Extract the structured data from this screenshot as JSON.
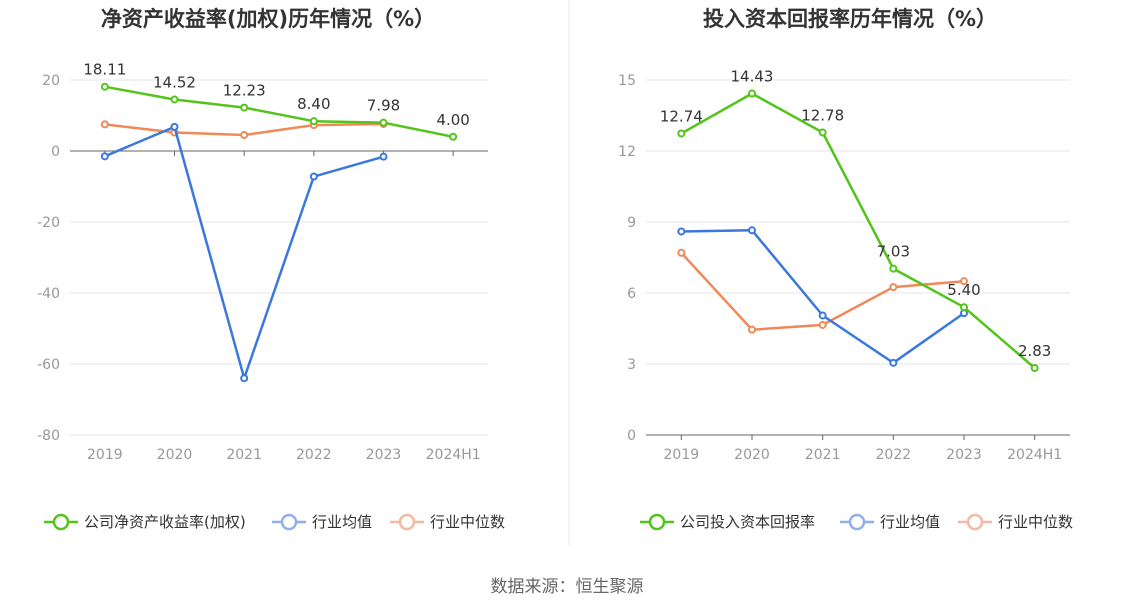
{
  "source": "数据来源：恒生聚源",
  "colors": {
    "company": "#52c41a",
    "avg": "#3a78de",
    "median": "#f08858"
  },
  "chart_data": [
    {
      "type": "line",
      "title": "净资产收益率(加权)历年情况（%）",
      "categories": [
        "2019",
        "2020",
        "2021",
        "2022",
        "2023",
        "2024H1"
      ],
      "ylim": [
        -80,
        20
      ],
      "yticks": [
        20,
        0,
        -20,
        -40,
        -60,
        -80
      ],
      "grid": true,
      "legend": "bottom",
      "series": [
        {
          "name": "公司净资产收益率(加权)",
          "color": "#52c41a",
          "values": [
            18.11,
            14.52,
            12.23,
            8.4,
            7.98,
            4.0
          ],
          "labels": [
            "18.11",
            "14.52",
            "12.23",
            "8.40",
            "7.98",
            "4.00"
          ]
        },
        {
          "name": "行业均值",
          "color": "#3a78de",
          "values": [
            -1.5,
            6.8,
            -64.0,
            -7.2,
            -1.6,
            null
          ]
        },
        {
          "name": "行业中位数",
          "color": "#f08858",
          "values": [
            7.5,
            5.2,
            4.5,
            7.3,
            7.6,
            null
          ]
        }
      ]
    },
    {
      "type": "line",
      "title": "投入资本回报率历年情况（%）",
      "categories": [
        "2019",
        "2020",
        "2021",
        "2022",
        "2023",
        "2024H1"
      ],
      "ylim": [
        0,
        15
      ],
      "yticks": [
        15,
        12,
        9,
        6,
        3,
        0
      ],
      "grid": true,
      "legend": "bottom",
      "series": [
        {
          "name": "公司投入资本回报率",
          "color": "#52c41a",
          "values": [
            12.74,
            14.43,
            12.78,
            7.03,
            5.4,
            2.83
          ],
          "labels": [
            "12.74",
            "14.43",
            "12.78",
            "7.03",
            "5.40",
            "2.83"
          ]
        },
        {
          "name": "行业均值",
          "color": "#3a78de",
          "values": [
            8.6,
            8.65,
            5.05,
            3.05,
            5.15,
            null
          ]
        },
        {
          "name": "行业中位数",
          "color": "#f08858",
          "values": [
            7.7,
            4.45,
            4.65,
            6.25,
            6.5,
            null
          ]
        }
      ]
    }
  ]
}
